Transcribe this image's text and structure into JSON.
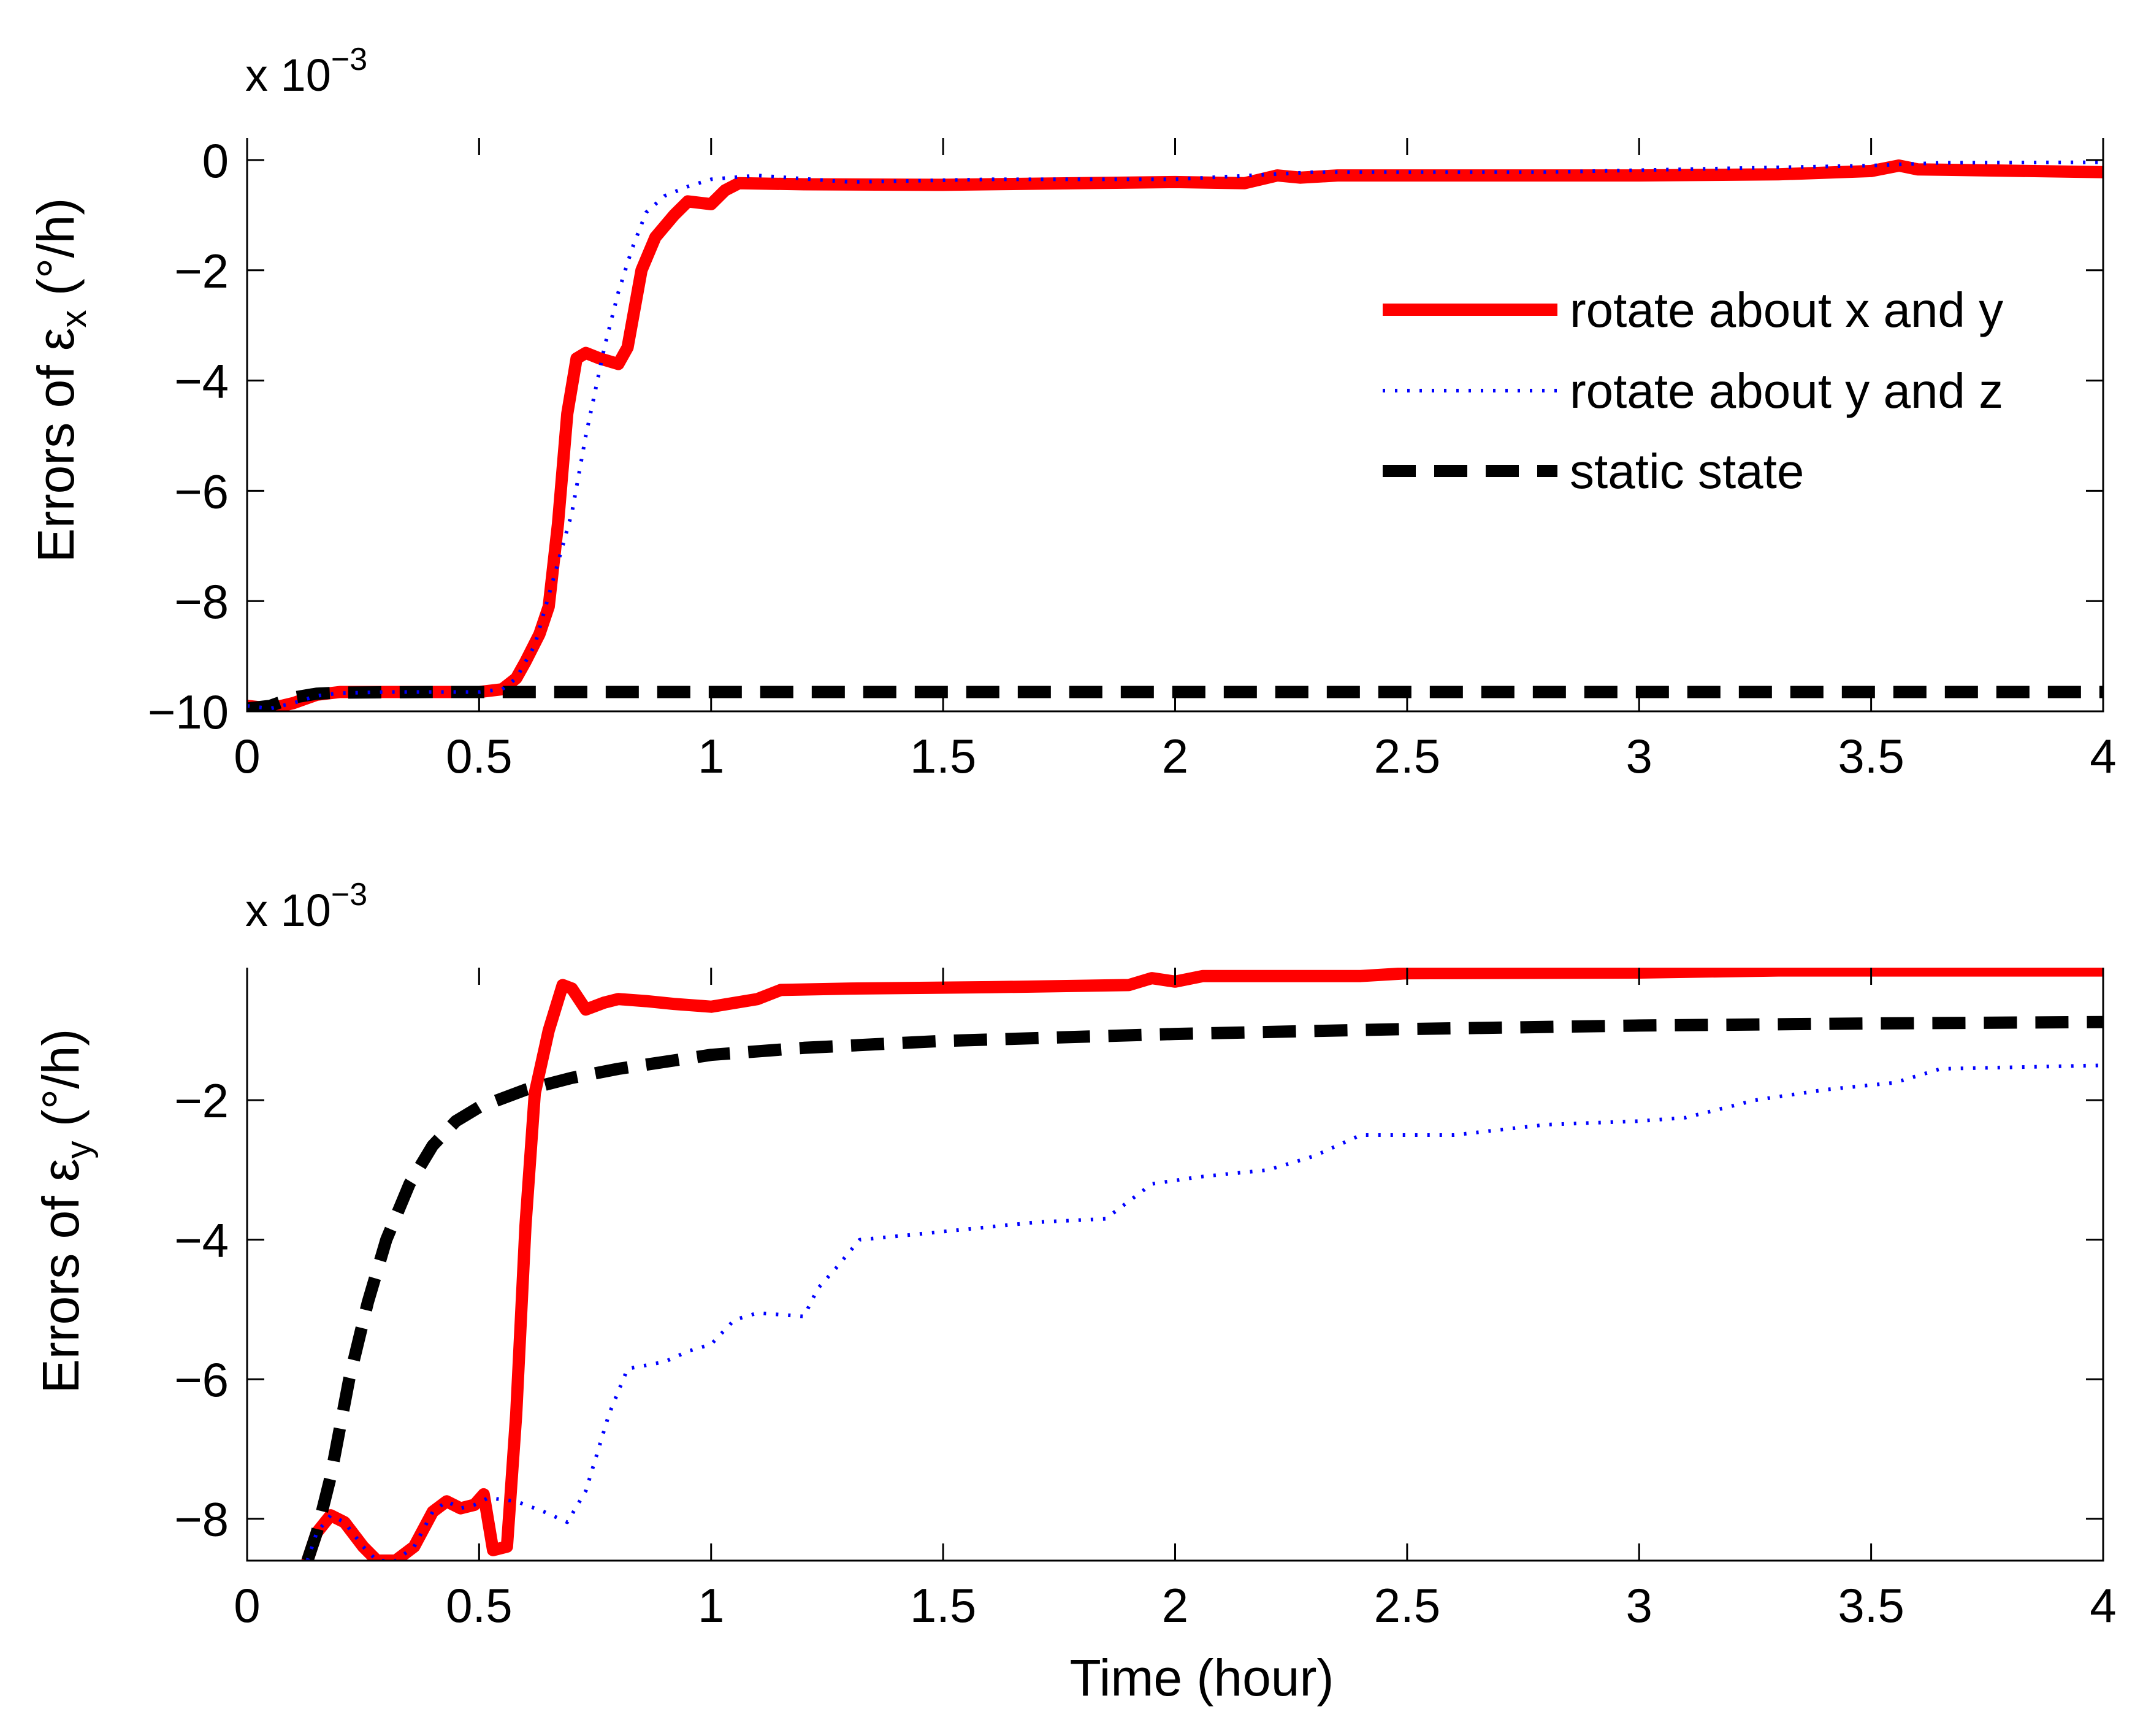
{
  "chart_data": [
    {
      "type": "line",
      "title": "",
      "xlabel": "",
      "ylabel": "Errors of ε",
      "ylabel_subscript": "x",
      "ylabel_unit": " (°/h)",
      "exponent_prefix": "x 10",
      "exponent_power": "−3",
      "xlim": [
        0,
        4
      ],
      "ylim": [
        -10,
        0.4
      ],
      "xticks": [
        0,
        0.5,
        1,
        1.5,
        2,
        2.5,
        3,
        3.5,
        4
      ],
      "xtick_labels": [
        "0",
        "0.5",
        "1",
        "1.5",
        "2",
        "2.5",
        "3",
        "3.5",
        "4"
      ],
      "yticks": [
        -10,
        -8,
        -6,
        -4,
        -2,
        0
      ],
      "ytick_labels": [
        "−10",
        "−8",
        "−6",
        "−4",
        "−2",
        "0"
      ],
      "grid": false,
      "legend_position": "top-right",
      "series": [
        {
          "name": "rotate about x and y",
          "color": "#ff0000",
          "style": "solid",
          "points": [
            [
              0,
              -9.9
            ],
            [
              0.05,
              -9.95
            ],
            [
              0.1,
              -9.85
            ],
            [
              0.15,
              -9.7
            ],
            [
              0.2,
              -9.65
            ],
            [
              0.3,
              -9.65
            ],
            [
              0.4,
              -9.65
            ],
            [
              0.5,
              -9.65
            ],
            [
              0.55,
              -9.6
            ],
            [
              0.58,
              -9.4
            ],
            [
              0.6,
              -9.1
            ],
            [
              0.63,
              -8.6
            ],
            [
              0.65,
              -8.1
            ],
            [
              0.67,
              -6.6
            ],
            [
              0.69,
              -4.6
            ],
            [
              0.71,
              -3.6
            ],
            [
              0.73,
              -3.5
            ],
            [
              0.76,
              -3.6
            ],
            [
              0.8,
              -3.7
            ],
            [
              0.82,
              -3.4
            ],
            [
              0.85,
              -2.0
            ],
            [
              0.88,
              -1.4
            ],
            [
              0.92,
              -1.0
            ],
            [
              0.95,
              -0.75
            ],
            [
              1.0,
              -0.8
            ],
            [
              1.03,
              -0.55
            ],
            [
              1.06,
              -0.42
            ],
            [
              1.2,
              -0.44
            ],
            [
              1.5,
              -0.45
            ],
            [
              2.0,
              -0.4
            ],
            [
              2.15,
              -0.42
            ],
            [
              2.22,
              -0.28
            ],
            [
              2.27,
              -0.32
            ],
            [
              2.35,
              -0.28
            ],
            [
              2.6,
              -0.28
            ],
            [
              3.0,
              -0.28
            ],
            [
              3.3,
              -0.26
            ],
            [
              3.5,
              -0.2
            ],
            [
              3.56,
              -0.1
            ],
            [
              3.6,
              -0.17
            ],
            [
              4.0,
              -0.22
            ]
          ]
        },
        {
          "name": "rotate about y and z",
          "color": "#0000ff",
          "style": "dotted",
          "points": [
            [
              0,
              -9.9
            ],
            [
              0.05,
              -9.95
            ],
            [
              0.1,
              -9.85
            ],
            [
              0.15,
              -9.72
            ],
            [
              0.2,
              -9.67
            ],
            [
              0.3,
              -9.65
            ],
            [
              0.5,
              -9.65
            ],
            [
              0.55,
              -9.6
            ],
            [
              0.58,
              -9.4
            ],
            [
              0.62,
              -8.8
            ],
            [
              0.66,
              -7.6
            ],
            [
              0.7,
              -6.4
            ],
            [
              0.73,
              -5.0
            ],
            [
              0.77,
              -3.4
            ],
            [
              0.8,
              -2.4
            ],
            [
              0.83,
              -1.6
            ],
            [
              0.86,
              -0.95
            ],
            [
              0.9,
              -0.65
            ],
            [
              0.95,
              -0.48
            ],
            [
              1.0,
              -0.35
            ],
            [
              1.1,
              -0.28
            ],
            [
              1.3,
              -0.4
            ],
            [
              1.6,
              -0.35
            ],
            [
              2.0,
              -0.35
            ],
            [
              2.3,
              -0.22
            ],
            [
              2.8,
              -0.22
            ],
            [
              3.2,
              -0.15
            ],
            [
              3.5,
              -0.1
            ],
            [
              3.65,
              -0.05
            ],
            [
              4.0,
              -0.04
            ]
          ]
        },
        {
          "name": "static state",
          "color": "#000000",
          "style": "dashed",
          "points": [
            [
              0,
              -9.95
            ],
            [
              0.05,
              -9.9
            ],
            [
              0.1,
              -9.75
            ],
            [
              0.15,
              -9.68
            ],
            [
              0.2,
              -9.66
            ],
            [
              0.4,
              -9.65
            ],
            [
              1.0,
              -9.65
            ],
            [
              2.0,
              -9.65
            ],
            [
              3.0,
              -9.65
            ],
            [
              4.0,
              -9.65
            ]
          ]
        }
      ],
      "legend": {
        "entries": [
          "rotate about x and y",
          "rotate about y and z",
          "static state"
        ]
      }
    },
    {
      "type": "line",
      "title": "",
      "xlabel": "Time (hour)",
      "ylabel": "Errors of ε",
      "ylabel_subscript": "y",
      "ylabel_unit": " (°/h)",
      "exponent_prefix": "x 10",
      "exponent_power": "−3",
      "xlim": [
        0,
        4
      ],
      "ylim": [
        -8.6,
        -0.1
      ],
      "xticks": [
        0,
        0.5,
        1,
        1.5,
        2,
        2.5,
        3,
        3.5,
        4
      ],
      "xtick_labels": [
        "0",
        "0.5",
        "1",
        "1.5",
        "2",
        "2.5",
        "3",
        "3.5",
        "4"
      ],
      "yticks": [
        -8,
        -6,
        -4,
        -2
      ],
      "ytick_labels": [
        "−8",
        "−6",
        "−4",
        "−2"
      ],
      "grid": false,
      "series": [
        {
          "name": "rotate about x and y",
          "color": "#ff0000",
          "style": "solid",
          "points": [
            [
              0.13,
              -8.6
            ],
            [
              0.15,
              -8.2
            ],
            [
              0.18,
              -7.95
            ],
            [
              0.21,
              -8.05
            ],
            [
              0.25,
              -8.4
            ],
            [
              0.28,
              -8.6
            ],
            [
              0.32,
              -8.6
            ],
            [
              0.36,
              -8.4
            ],
            [
              0.4,
              -7.9
            ],
            [
              0.43,
              -7.75
            ],
            [
              0.46,
              -7.85
            ],
            [
              0.49,
              -7.8
            ],
            [
              0.51,
              -7.65
            ],
            [
              0.53,
              -8.45
            ],
            [
              0.56,
              -8.4
            ],
            [
              0.58,
              -6.5
            ],
            [
              0.6,
              -3.8
            ],
            [
              0.62,
              -1.9
            ],
            [
              0.65,
              -1.0
            ],
            [
              0.68,
              -0.35
            ],
            [
              0.7,
              -0.4
            ],
            [
              0.73,
              -0.7
            ],
            [
              0.77,
              -0.6
            ],
            [
              0.8,
              -0.55
            ],
            [
              0.86,
              -0.58
            ],
            [
              0.92,
              -0.62
            ],
            [
              1.0,
              -0.66
            ],
            [
              1.1,
              -0.55
            ],
            [
              1.15,
              -0.42
            ],
            [
              1.3,
              -0.4
            ],
            [
              1.6,
              -0.38
            ],
            [
              1.9,
              -0.35
            ],
            [
              1.95,
              -0.25
            ],
            [
              2.0,
              -0.3
            ],
            [
              2.06,
              -0.22
            ],
            [
              2.4,
              -0.22
            ],
            [
              2.5,
              -0.18
            ],
            [
              3.0,
              -0.17
            ],
            [
              3.3,
              -0.14
            ],
            [
              4.0,
              -0.14
            ]
          ]
        },
        {
          "name": "rotate about y and z",
          "color": "#0000ff",
          "style": "dotted",
          "points": [
            [
              0.13,
              -8.6
            ],
            [
              0.15,
              -8.2
            ],
            [
              0.18,
              -7.95
            ],
            [
              0.21,
              -8.05
            ],
            [
              0.25,
              -8.4
            ],
            [
              0.28,
              -8.6
            ],
            [
              0.32,
              -8.6
            ],
            [
              0.36,
              -8.4
            ],
            [
              0.4,
              -7.9
            ],
            [
              0.43,
              -7.75
            ],
            [
              0.46,
              -7.85
            ],
            [
              0.49,
              -7.8
            ],
            [
              0.52,
              -7.7
            ],
            [
              0.58,
              -7.75
            ],
            [
              0.64,
              -7.9
            ],
            [
              0.69,
              -8.05
            ],
            [
              0.73,
              -7.6
            ],
            [
              0.78,
              -6.5
            ],
            [
              0.82,
              -5.85
            ],
            [
              0.9,
              -5.75
            ],
            [
              0.95,
              -5.6
            ],
            [
              1.0,
              -5.5
            ],
            [
              1.05,
              -5.15
            ],
            [
              1.1,
              -5.05
            ],
            [
              1.2,
              -5.1
            ],
            [
              1.23,
              -4.7
            ],
            [
              1.27,
              -4.4
            ],
            [
              1.32,
              -4.0
            ],
            [
              1.4,
              -3.95
            ],
            [
              1.55,
              -3.85
            ],
            [
              1.7,
              -3.75
            ],
            [
              1.85,
              -3.7
            ],
            [
              1.95,
              -3.2
            ],
            [
              2.05,
              -3.1
            ],
            [
              2.2,
              -3.0
            ],
            [
              2.3,
              -2.8
            ],
            [
              2.4,
              -2.5
            ],
            [
              2.6,
              -2.5
            ],
            [
              2.8,
              -2.35
            ],
            [
              3.0,
              -2.3
            ],
            [
              3.1,
              -2.25
            ],
            [
              3.25,
              -2.0
            ],
            [
              3.4,
              -1.85
            ],
            [
              3.55,
              -1.75
            ],
            [
              3.65,
              -1.55
            ],
            [
              4.0,
              -1.5
            ]
          ]
        },
        {
          "name": "static state",
          "color": "#000000",
          "style": "dashed",
          "points": [
            [
              0.13,
              -8.6
            ],
            [
              0.15,
              -8.2
            ],
            [
              0.18,
              -7.4
            ],
            [
              0.22,
              -6.0
            ],
            [
              0.26,
              -4.9
            ],
            [
              0.3,
              -4.0
            ],
            [
              0.35,
              -3.2
            ],
            [
              0.4,
              -2.65
            ],
            [
              0.45,
              -2.3
            ],
            [
              0.5,
              -2.1
            ],
            [
              0.6,
              -1.85
            ],
            [
              0.7,
              -1.68
            ],
            [
              0.8,
              -1.55
            ],
            [
              1.0,
              -1.35
            ],
            [
              1.2,
              -1.25
            ],
            [
              1.5,
              -1.15
            ],
            [
              2.0,
              -1.05
            ],
            [
              2.5,
              -0.98
            ],
            [
              3.0,
              -0.93
            ],
            [
              3.5,
              -0.9
            ],
            [
              4.0,
              -0.88
            ]
          ]
        }
      ]
    }
  ]
}
